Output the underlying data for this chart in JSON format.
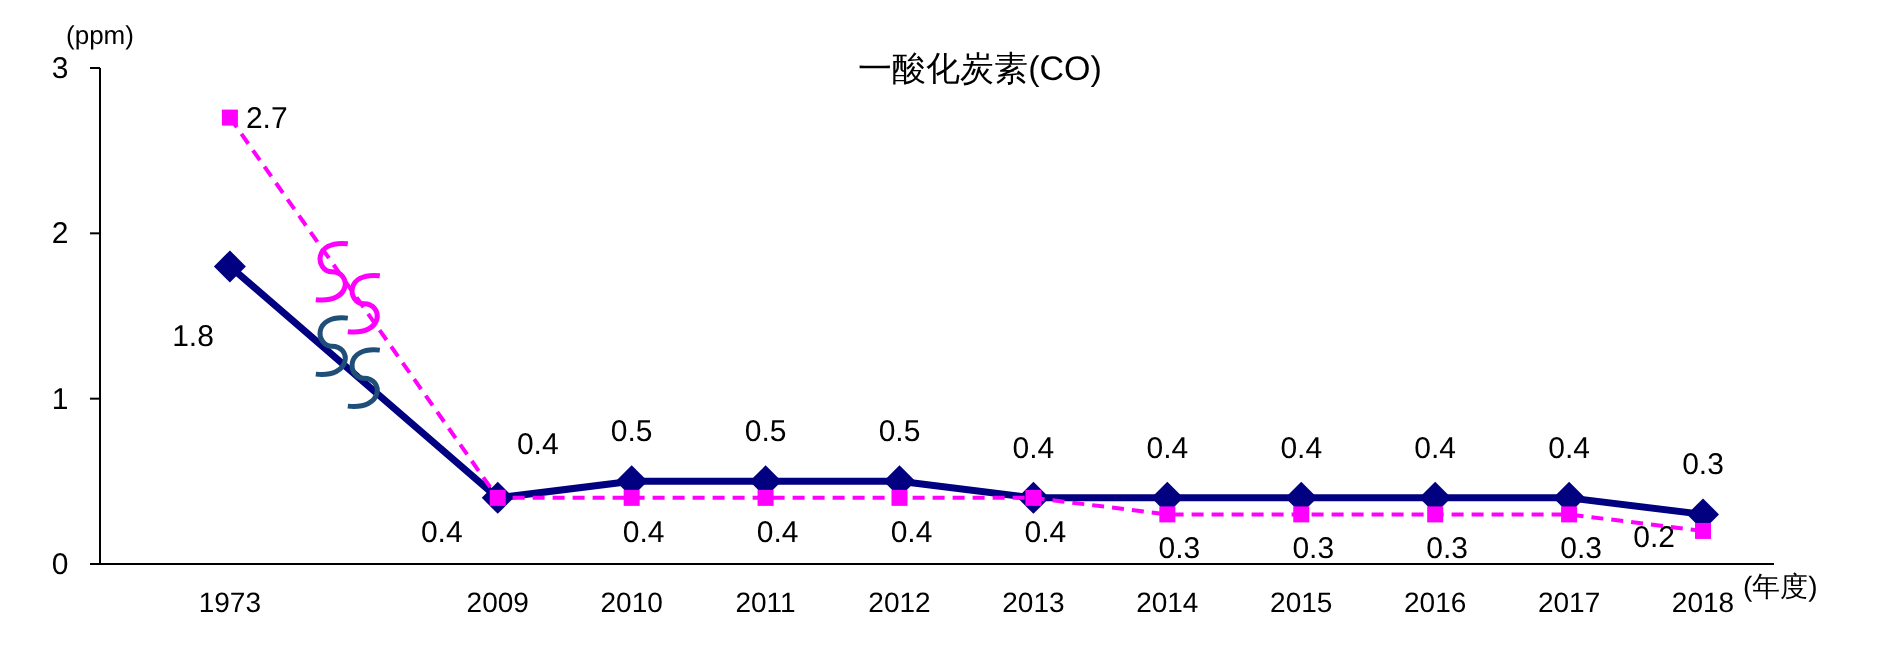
{
  "chart_data": {
    "type": "line",
    "title": "一酸化炭素(CO)",
    "ylabel": "(ppm)",
    "xlabel": "(年度)",
    "categories": [
      "1973",
      null,
      "2009",
      "2010",
      "2011",
      "2012",
      "2013",
      "2014",
      "2015",
      "2016",
      "2017",
      "2018"
    ],
    "series": [
      {
        "color": "#000080",
        "marker": "diamond",
        "line_style": "solid",
        "values": [
          1.8,
          null,
          0.4,
          0.5,
          0.5,
          0.5,
          0.4,
          0.4,
          0.4,
          0.4,
          0.4,
          0.3
        ]
      },
      {
        "color": "#ff00ff",
        "marker": "square",
        "line_style": "dashed",
        "values": [
          2.7,
          null,
          0.4,
          0.4,
          0.4,
          0.4,
          0.4,
          0.3,
          0.3,
          0.3,
          0.3,
          0.2
        ]
      }
    ],
    "ylim": [
      0,
      3
    ],
    "yticks": [
      0,
      1,
      2,
      3
    ],
    "data_labels": true
  }
}
